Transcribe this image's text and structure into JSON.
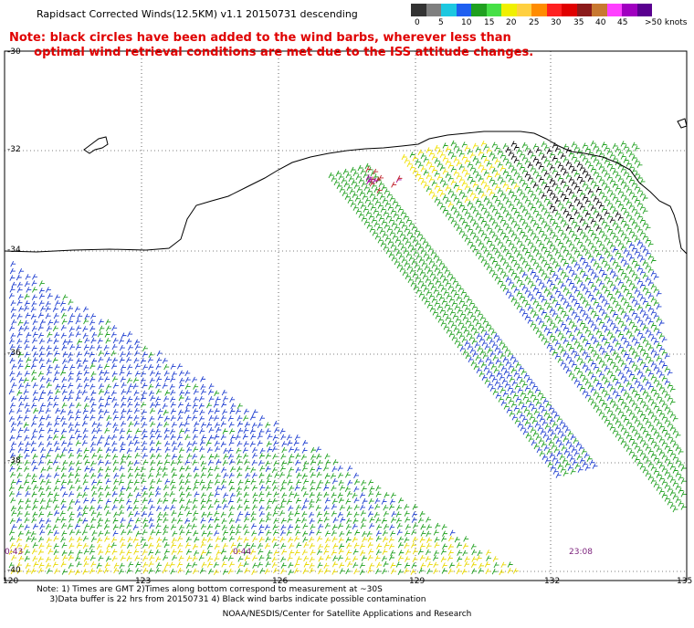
{
  "title": "Rapidsact Corrected Winds(12.5KM) v1.1 20150731 descending",
  "note_line1": "Note: black circles have been added to the wind barbs, wherever less than",
  "note_line2": "optimal wind retrieval conditions are met due to the ISS attitude changes.",
  "legend": {
    "labels": [
      "0",
      "5",
      "10",
      "15",
      "20",
      "25",
      "30",
      "35",
      "40",
      "45",
      ">50 knots"
    ],
    "colors": [
      "#333333",
      "#7f7f7f",
      "#1ec8e0",
      "#1f5ff0",
      "#20a020",
      "#46e046",
      "#f0f000",
      "#ffd040",
      "#ff8c00",
      "#ff2020",
      "#e00000",
      "#8b1a1a",
      "#c87830",
      "#ff40ff",
      "#a000c0",
      "#5a0090"
    ]
  },
  "lat_labels": [
    "-30",
    "-32",
    "-34",
    "-36",
    "-38",
    "-40"
  ],
  "lon_labels": [
    "120",
    "123",
    "126",
    "129",
    "132",
    "135"
  ],
  "time_labels": [
    "0:43",
    "0:44",
    "23:08"
  ],
  "footer_line1": "Note: 1) Times are GMT 2)Times along bottom correspond to measurement at ~30S",
  "footer_line2": "3)Data buffer is 22 hrs from 20150731 4) Black wind barbs indicate possible contamination",
  "credit": "NOAA/NESDIS/Center for Satellite Applications and Research"
}
